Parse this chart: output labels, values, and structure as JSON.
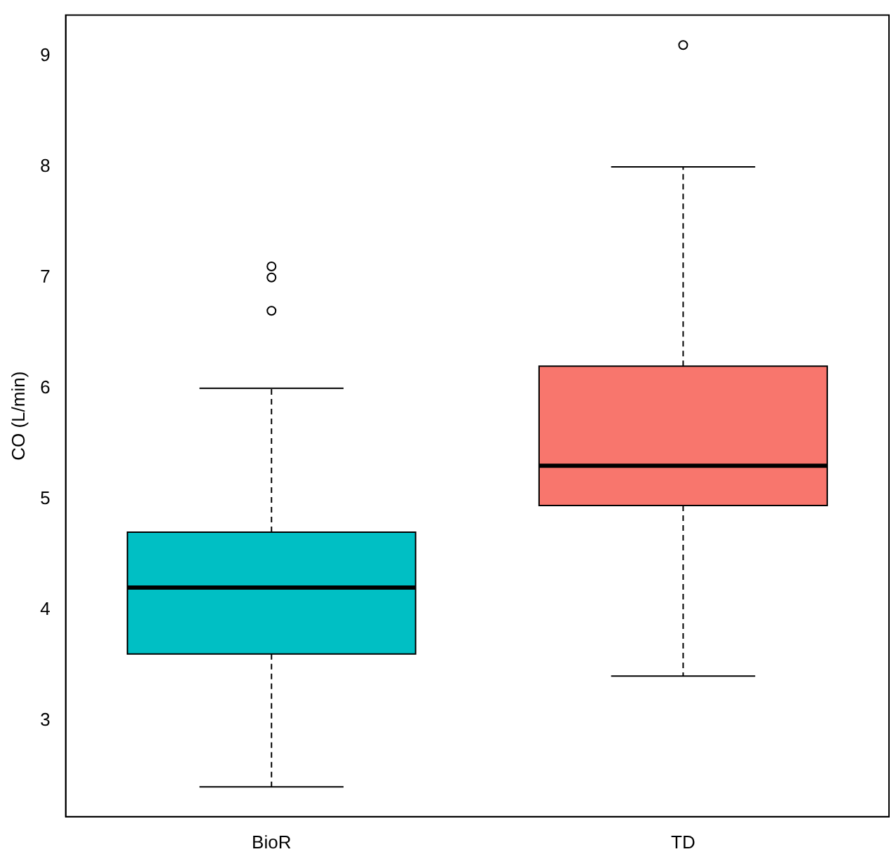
{
  "chart_data": {
    "type": "box",
    "ylabel": "CO (L/min)",
    "categories": [
      "BioR",
      "TD"
    ],
    "colors": [
      "#00bfc4",
      "#f8766d"
    ],
    "boxes": [
      {
        "low": 2.4,
        "q1": 3.6,
        "median": 4.2,
        "q3": 4.7,
        "high": 6.0,
        "outliers": [
          6.7,
          7.0,
          7.1
        ]
      },
      {
        "low": 3.4,
        "q1": 4.94,
        "median": 5.3,
        "q3": 6.2,
        "high": 8.0,
        "outliers": [
          9.1
        ]
      }
    ],
    "ylim": [
      2.13,
      9.37
    ],
    "yticks": [
      3,
      4,
      5,
      6,
      7,
      8,
      9
    ],
    "grid": false,
    "legend": false
  }
}
